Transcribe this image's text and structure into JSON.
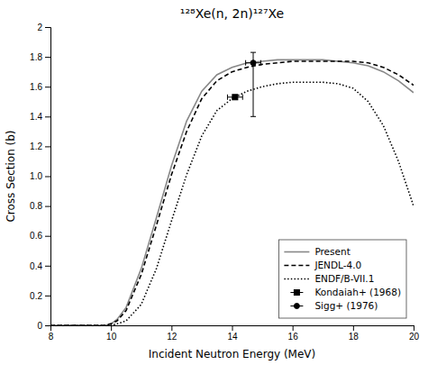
{
  "chart_data": {
    "type": "line",
    "title": "¹²⁸Xe(n, 2n)¹²⁷Xe",
    "x_label": "Incident Neutron Energy (MeV)",
    "y_label": "Cross Section (b)",
    "xlim": [
      8,
      20
    ],
    "ylim": [
      0,
      2
    ],
    "xticks": [
      8,
      10,
      12,
      14,
      16,
      18,
      20
    ],
    "yticks": [
      0,
      0.2,
      0.4,
      0.6,
      0.8,
      {
        "value": 1.0,
        "label": "1.0"
      },
      1.2,
      1.4,
      1.6,
      1.8,
      2
    ],
    "grid": false,
    "legend": "lower right",
    "series": [
      {
        "name": "Present",
        "type": "line",
        "color": "#888888",
        "line_style": "solid",
        "x": [
          8.0,
          9.5,
          9.8,
          10.0,
          10.2,
          10.5,
          11.0,
          11.5,
          12.0,
          12.5,
          13.0,
          13.5,
          14.0,
          14.5,
          15.0,
          15.5,
          16.0,
          16.5,
          17.0,
          17.5,
          18.0,
          18.5,
          19.0,
          19.5,
          20.0
        ],
        "values": [
          0.0,
          0.0,
          0.0,
          0.01,
          0.04,
          0.12,
          0.38,
          0.72,
          1.07,
          1.37,
          1.57,
          1.68,
          1.73,
          1.76,
          1.77,
          1.78,
          1.78,
          1.78,
          1.78,
          1.77,
          1.76,
          1.74,
          1.7,
          1.64,
          1.56
        ]
      },
      {
        "name": "JENDL-4.0",
        "type": "line",
        "color": "#000000",
        "line_style": "dashed",
        "x": [
          8.0,
          9.5,
          9.8,
          10.0,
          10.2,
          10.5,
          11.0,
          11.5,
          12.0,
          12.5,
          13.0,
          13.5,
          14.0,
          14.5,
          15.0,
          15.5,
          16.0,
          16.5,
          17.0,
          17.5,
          18.0,
          18.5,
          19.0,
          19.5,
          20.0
        ],
        "values": [
          0.0,
          0.0,
          0.0,
          0.01,
          0.03,
          0.1,
          0.34,
          0.67,
          1.01,
          1.3,
          1.52,
          1.64,
          1.7,
          1.73,
          1.75,
          1.76,
          1.77,
          1.77,
          1.77,
          1.77,
          1.77,
          1.76,
          1.73,
          1.68,
          1.61
        ]
      },
      {
        "name": "ENDF/B-VII.1",
        "type": "line",
        "color": "#000000",
        "line_style": "dotted",
        "x": [
          8.0,
          9.5,
          9.8,
          10.0,
          10.2,
          10.5,
          11.0,
          11.5,
          12.0,
          12.5,
          13.0,
          13.5,
          14.0,
          14.5,
          15.0,
          15.5,
          16.0,
          16.5,
          17.0,
          17.5,
          18.0,
          18.5,
          19.0,
          19.5,
          20.0
        ],
        "values": [
          0.0,
          0.0,
          0.0,
          0.0,
          0.01,
          0.03,
          0.14,
          0.38,
          0.7,
          1.01,
          1.27,
          1.44,
          1.52,
          1.57,
          1.6,
          1.62,
          1.63,
          1.63,
          1.63,
          1.62,
          1.59,
          1.5,
          1.34,
          1.1,
          0.8
        ]
      },
      {
        "name": "Kondaiah+ (1968)",
        "type": "scatter",
        "color": "#000000",
        "marker": "square",
        "x": [
          14.1
        ],
        "values": [
          1.53
        ],
        "xerr": [
          0.25
        ],
        "yerr": [
          0.0
        ]
      },
      {
        "name": "Sigg+ (1976)",
        "type": "scatter",
        "color": "#000000",
        "marker": "circle",
        "x": [
          14.7
        ],
        "values": [
          1.76
        ],
        "xerr": [
          0.25
        ],
        "yerr_low": [
          0.36
        ],
        "yerr_high": [
          0.07
        ]
      }
    ]
  }
}
